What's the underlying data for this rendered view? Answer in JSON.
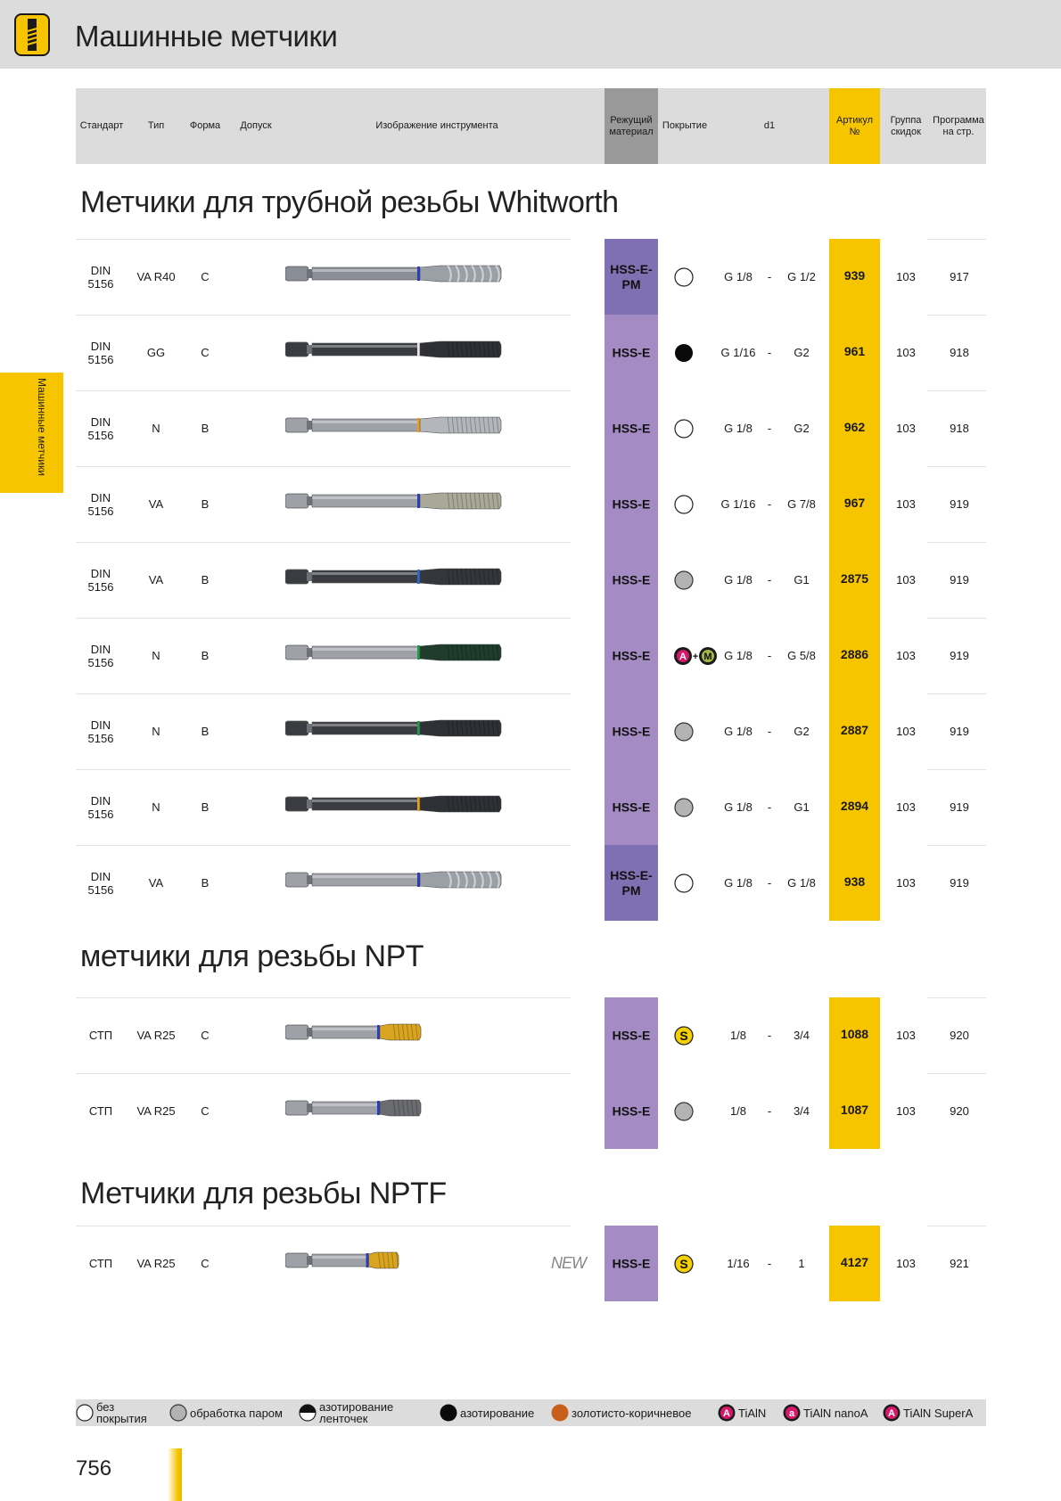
{
  "page": {
    "title": "Машинные метчики",
    "side_tab": "Машинные метчики",
    "page_number": "756"
  },
  "header": {
    "standard": "Стандарт",
    "type": "Тип",
    "form": "Форма",
    "tolerance": "Допуск",
    "image": "Изображение инструмента",
    "material_1": "Режущий",
    "material_2": "материал",
    "coating": "Покрытие",
    "d1": "d1",
    "article_1": "Артикул",
    "article_2": "№",
    "group_1": "Группа",
    "group_2": "скидок",
    "program_1": "Программа",
    "program_2": "на стр."
  },
  "sections": [
    {
      "title": "Метчики для трубной резьбы Whitworth",
      "rows": [
        {
          "std1": "DIN",
          "std2": "5156",
          "type": "VA R40",
          "form": "C",
          "material": "HSS-E-PM",
          "mat_color": "#7f6fb3",
          "coating": "none",
          "d1a": "G 1/8",
          "dash": "-",
          "d1b": "G 1/2",
          "article": "939",
          "group": "103",
          "program": "917",
          "tool": {
            "body": "#8a8e96",
            "tip": "#9aa0a6",
            "ring": "#2a3fc0",
            "style": "spiral"
          }
        },
        {
          "std1": "DIN",
          "std2": "5156",
          "type": "GG",
          "form": "C",
          "material": "HSS-E",
          "mat_color": "#a48bc4",
          "coating": "black",
          "d1a": "G 1/16",
          "dash": "-",
          "d1b": "G2",
          "article": "961",
          "group": "103",
          "program": "918",
          "tool": {
            "body": "#3a3c42",
            "tip": "#2e3035",
            "ring": "#e8e8e8",
            "style": "straight"
          }
        },
        {
          "std1": "DIN",
          "std2": "5156",
          "type": "N",
          "form": "B",
          "material": "HSS-E",
          "mat_color": "#a48bc4",
          "coating": "none",
          "d1a": "G 1/8",
          "dash": "-",
          "d1b": "G2",
          "article": "962",
          "group": "103",
          "program": "918",
          "tool": {
            "body": "#9ea2a8",
            "tip": "#b3b6ba",
            "ring": "#e8a01c",
            "style": "straight"
          }
        },
        {
          "std1": "DIN",
          "std2": "5156",
          "type": "VA",
          "form": "B",
          "material": "HSS-E",
          "mat_color": "#a48bc4",
          "coating": "none",
          "d1a": "G 1/16",
          "dash": "-",
          "d1b": "G 7/8",
          "article": "967",
          "group": "103",
          "program": "919",
          "tool": {
            "body": "#9ea2a8",
            "tip": "#a9a899",
            "ring": "#2a3fc0",
            "style": "straight"
          }
        },
        {
          "std1": "DIN",
          "std2": "5156",
          "type": "VA",
          "form": "B",
          "material": "HSS-E",
          "mat_color": "#a48bc4",
          "coating": "grey",
          "d1a": "G 1/8",
          "dash": "-",
          "d1b": "G1",
          "article": "2875",
          "group": "103",
          "program": "919",
          "tool": {
            "body": "#3a3c42",
            "tip": "#34363b",
            "ring": "#2a6bd0",
            "style": "straight"
          }
        },
        {
          "std1": "DIN",
          "std2": "5156",
          "type": "N",
          "form": "B",
          "material": "HSS-E",
          "mat_color": "#a48bc4",
          "coating": "A+M",
          "d1a": "G 1/8",
          "dash": "-",
          "d1b": "G 5/8",
          "article": "2886",
          "group": "103",
          "program": "919",
          "tool": {
            "body": "#9ea2a8",
            "tip": "#1f3d2a",
            "ring": "#1e9a4a",
            "style": "straight"
          }
        },
        {
          "std1": "DIN",
          "std2": "5156",
          "type": "N",
          "form": "B",
          "material": "HSS-E",
          "mat_color": "#a48bc4",
          "coating": "grey",
          "d1a": "G 1/8",
          "dash": "-",
          "d1b": "G2",
          "article": "2887",
          "group": "103",
          "program": "919",
          "tool": {
            "body": "#3a3c42",
            "tip": "#2e3035",
            "ring": "#1e9a4a",
            "style": "straight"
          }
        },
        {
          "std1": "DIN",
          "std2": "5156",
          "type": "N",
          "form": "B",
          "material": "HSS-E",
          "mat_color": "#a48bc4",
          "coating": "grey",
          "d1a": "G 1/8",
          "dash": "-",
          "d1b": "G1",
          "article": "2894",
          "group": "103",
          "program": "919",
          "tool": {
            "body": "#3a3c42",
            "tip": "#2e3035",
            "ring": "#e8a01c",
            "style": "straight"
          }
        },
        {
          "std1": "DIN",
          "std2": "5156",
          "type": "VA",
          "form": "B",
          "material": "HSS-E-PM",
          "mat_color": "#7f6fb3",
          "coating": "none",
          "d1a": "G 1/8",
          "dash": "-",
          "d1b": "G 1/8",
          "article": "938",
          "group": "103",
          "program": "919",
          "tool": {
            "body": "#9ea2a8",
            "tip": "#9aa0a6",
            "ring": "#2a3fc0",
            "style": "spiral"
          }
        }
      ]
    },
    {
      "title": "метчики для резьбы NPT",
      "rows": [
        {
          "std1": "СТП",
          "std2": "",
          "type": "VA R25",
          "form": "C",
          "material": "HSS-E",
          "mat_color": "#a48bc4",
          "coating": "S",
          "d1a": "1/8",
          "dash": "-",
          "d1b": "3/4",
          "article": "1088",
          "group": "103",
          "program": "920",
          "tool": {
            "body": "#9ea2a8",
            "tip": "#d9a520",
            "ring": "#2a3fc0",
            "style": "short"
          }
        },
        {
          "std1": "СТП",
          "std2": "",
          "type": "VA R25",
          "form": "C",
          "material": "HSS-E",
          "mat_color": "#a48bc4",
          "coating": "grey",
          "d1a": "1/8",
          "dash": "-",
          "d1b": "3/4",
          "article": "1087",
          "group": "103",
          "program": "920",
          "tool": {
            "body": "#9ea2a8",
            "tip": "#6b6c70",
            "ring": "#2a3fc0",
            "style": "short"
          }
        }
      ]
    },
    {
      "title": "Метчики для резьбы NPTF",
      "rows": [
        {
          "std1": "СТП",
          "std2": "",
          "type": "VA R25",
          "form": "C",
          "material": "HSS-E",
          "mat_color": "#a48bc4",
          "coating": "S",
          "d1a": "1/16",
          "dash": "-",
          "d1b": "1",
          "article": "4127",
          "group": "103",
          "program": "921",
          "new": "NEW",
          "tool": {
            "body": "#9ea2a8",
            "tip": "#d9a520",
            "ring": "#2a3fc0",
            "style": "shorter"
          }
        }
      ]
    }
  ],
  "legend": [
    {
      "icon": "none",
      "l1": "без",
      "l2": "покрытия"
    },
    {
      "icon": "grey",
      "l1": "обработка паром",
      "l2": ""
    },
    {
      "icon": "half",
      "l1": "азотирование",
      "l2": "ленточек"
    },
    {
      "icon": "black",
      "l1": "азотирование",
      "l2": ""
    },
    {
      "icon": "brown",
      "l1": "золотисто-коричневое",
      "l2": ""
    },
    {
      "icon": "A",
      "l1": "TiAlN",
      "l2": ""
    },
    {
      "icon": "a",
      "l1": "TiAlN nanoA",
      "l2": ""
    },
    {
      "icon": "A2",
      "l1": "TiAlN SuperA",
      "l2": ""
    }
  ]
}
